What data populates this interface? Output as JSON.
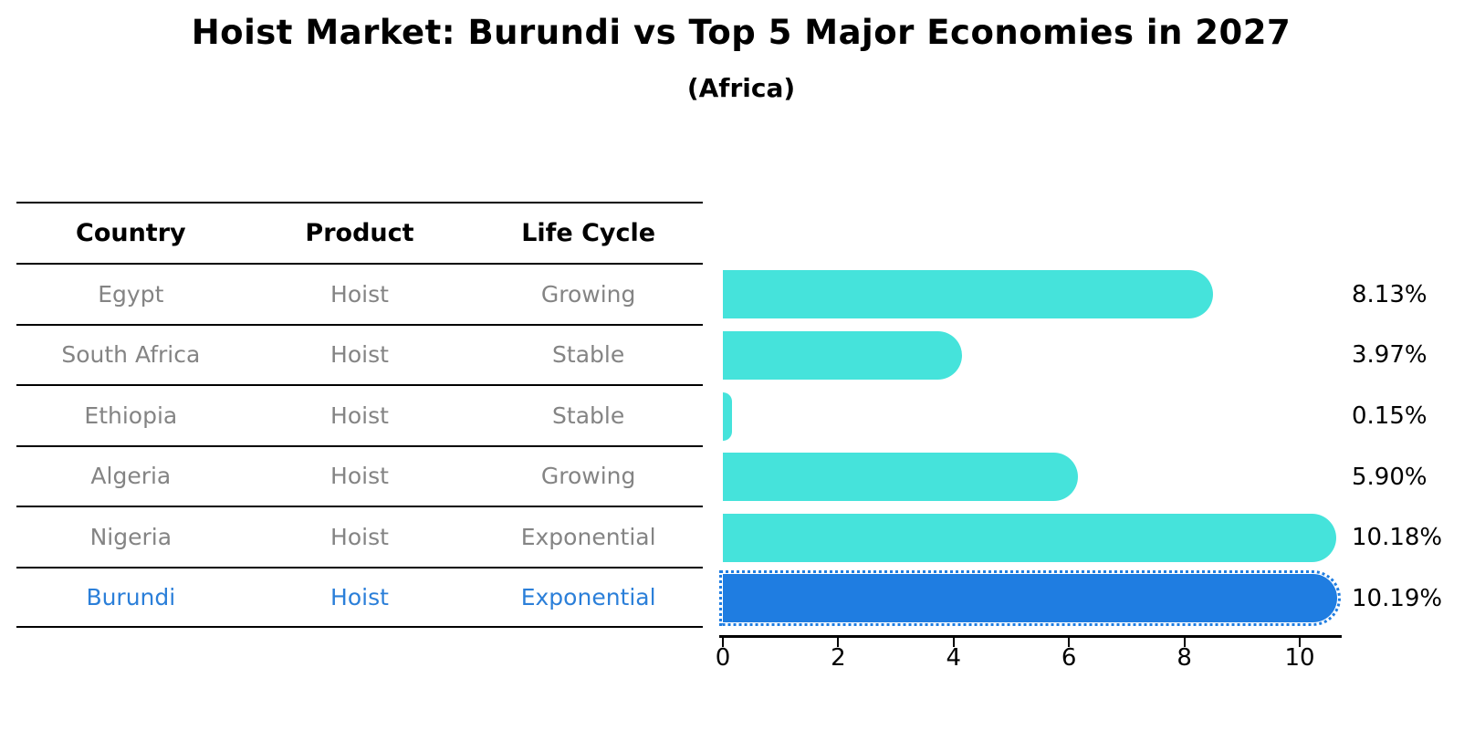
{
  "title": "Hoist Market: Burundi vs Top 5 Major Economies in 2027",
  "subtitle": "(Africa)",
  "table": {
    "headers": [
      "Country",
      "Product",
      "Life Cycle"
    ],
    "rows": [
      {
        "country": "Egypt",
        "product": "Hoist",
        "life_cycle": "Growing",
        "highlight": false
      },
      {
        "country": "South Africa",
        "product": "Hoist",
        "life_cycle": "Stable",
        "highlight": false
      },
      {
        "country": "Ethiopia",
        "product": "Hoist",
        "life_cycle": "Stable",
        "highlight": false
      },
      {
        "country": "Algeria",
        "product": "Hoist",
        "life_cycle": "Growing",
        "highlight": false
      },
      {
        "country": "Nigeria",
        "product": "Hoist",
        "life_cycle": "Exponential",
        "highlight": false
      },
      {
        "country": "Burundi",
        "product": "Hoist",
        "life_cycle": "Exponential",
        "highlight": true
      }
    ]
  },
  "chart_data": {
    "type": "bar",
    "orientation": "horizontal",
    "categories": [
      "Egypt",
      "South Africa",
      "Ethiopia",
      "Algeria",
      "Nigeria",
      "Burundi"
    ],
    "values": [
      8.13,
      3.97,
      0.15,
      5.9,
      10.18,
      10.19
    ],
    "value_labels": [
      "8.13%",
      "3.97%",
      "0.15%",
      "5.90%",
      "10.18%",
      "10.19%"
    ],
    "xticks": [
      0,
      2,
      4,
      6,
      8,
      10
    ],
    "xlim": [
      0,
      10.7
    ],
    "xlabel": "",
    "ylabel": "",
    "grid": false,
    "legend": false,
    "highlight_index": 5
  },
  "colors": {
    "bar": "#45E3DB",
    "highlight_bar": "#1F7DE1",
    "highlight_text": "#2B7FD9",
    "row_text": "#848484",
    "header_text": "#000000",
    "axis": "#000000"
  }
}
